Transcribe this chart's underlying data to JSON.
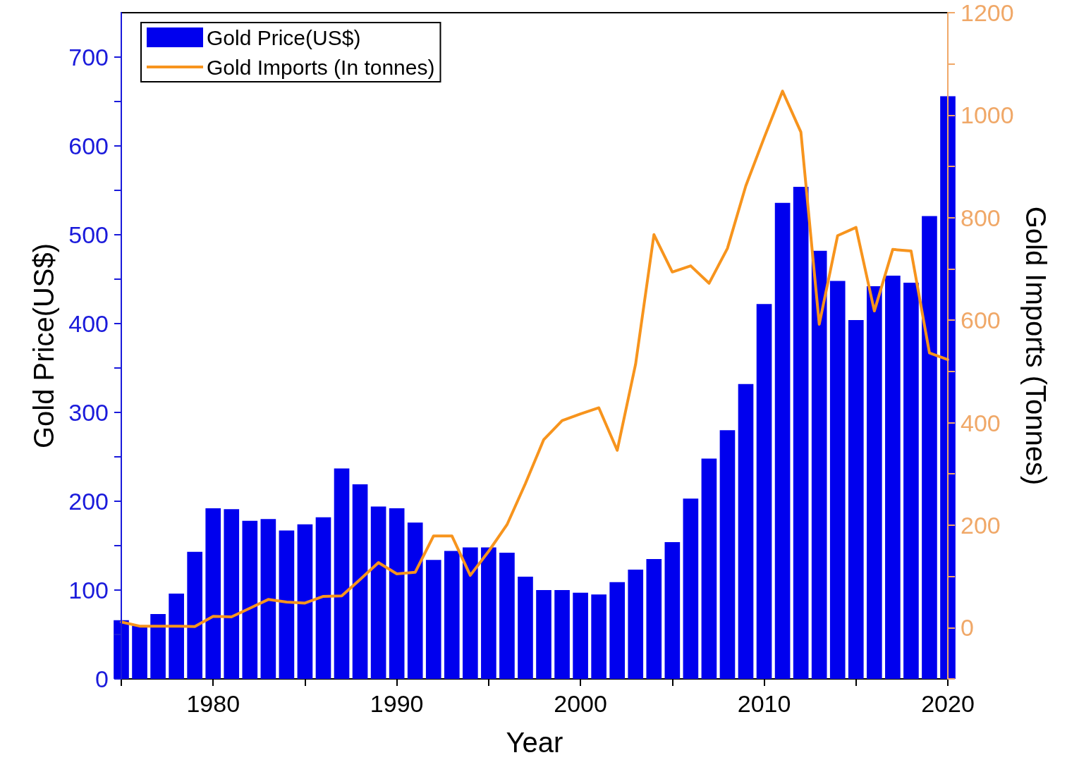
{
  "chart_data": {
    "type": "bar",
    "xlabel": "Year",
    "ylabel": "Gold Price(US$)",
    "y2label": "Gold Imports (Tonnes)",
    "x": [
      1975,
      1976,
      1977,
      1978,
      1979,
      1980,
      1981,
      1982,
      1983,
      1984,
      1985,
      1986,
      1987,
      1988,
      1989,
      1990,
      1991,
      1992,
      1993,
      1994,
      1995,
      1996,
      1997,
      1998,
      1999,
      2000,
      2001,
      2002,
      2003,
      2004,
      2005,
      2006,
      2007,
      2008,
      2009,
      2010,
      2011,
      2012,
      2013,
      2014,
      2015,
      2016,
      2017,
      2018,
      2019,
      2020
    ],
    "series": [
      {
        "name": "Gold Price(US$)",
        "color": "#0000ee",
        "values": [
          66,
          60,
          73,
          96,
          143,
          192,
          191,
          178,
          180,
          167,
          174,
          182,
          237,
          219,
          194,
          192,
          176,
          134,
          144,
          148,
          148,
          142,
          115,
          100,
          100,
          97,
          95,
          109,
          123,
          135,
          154,
          203,
          248,
          280,
          332,
          422,
          536,
          554,
          482,
          448,
          404,
          442,
          454,
          446,
          521,
          656
        ]
      },
      {
        "name": "Gold Imports (In tonnes)",
        "type": "line",
        "axis": "y2",
        "color": "#f7941d",
        "marker": "none",
        "line_style": "solid",
        "values": [
          11,
          3,
          3,
          3,
          2,
          22,
          21,
          38,
          55,
          50,
          48,
          61,
          62,
          94,
          127,
          105,
          108,
          179,
          179,
          102,
          149,
          201,
          281,
          367,
          404,
          417,
          429,
          346,
          514,
          767,
          694,
          706,
          672,
          740,
          862,
          956,
          1047,
          967,
          592,
          765,
          781,
          618,
          738,
          735,
          536,
          523
        ]
      }
    ],
    "xlim": [
      1975,
      2020
    ],
    "xticks": [
      {
        "value": 1975,
        "label": null
      },
      1980,
      {
        "value": 1985,
        "label": null
      },
      1990,
      {
        "value": 1995,
        "label": null
      },
      2000,
      {
        "value": 2005,
        "label": null
      },
      2010,
      {
        "value": 2015,
        "label": null
      },
      2020
    ],
    "ylim": [
      0,
      750
    ],
    "yticks": [
      0,
      {
        "value": 50,
        "label": null
      },
      100,
      {
        "value": 150,
        "label": null
      },
      200,
      {
        "value": 250,
        "label": null
      },
      300,
      {
        "value": 350,
        "label": null
      },
      400,
      {
        "value": 450,
        "label": null
      },
      500,
      {
        "value": 550,
        "label": null
      },
      600,
      {
        "value": 650,
        "label": null
      },
      700
    ],
    "y2lim": [
      -100,
      1200
    ],
    "y2ticks": [
      {
        "value": -100,
        "label": null
      },
      0,
      {
        "value": 100,
        "label": null
      },
      200,
      {
        "value": 300,
        "label": null
      },
      400,
      {
        "value": 500,
        "label": null
      },
      600,
      {
        "value": 700,
        "label": null
      },
      800,
      {
        "value": 900,
        "label": null
      },
      1000,
      {
        "value": 1100,
        "label": null
      },
      1200
    ],
    "grid": false,
    "legend": "top left"
  }
}
